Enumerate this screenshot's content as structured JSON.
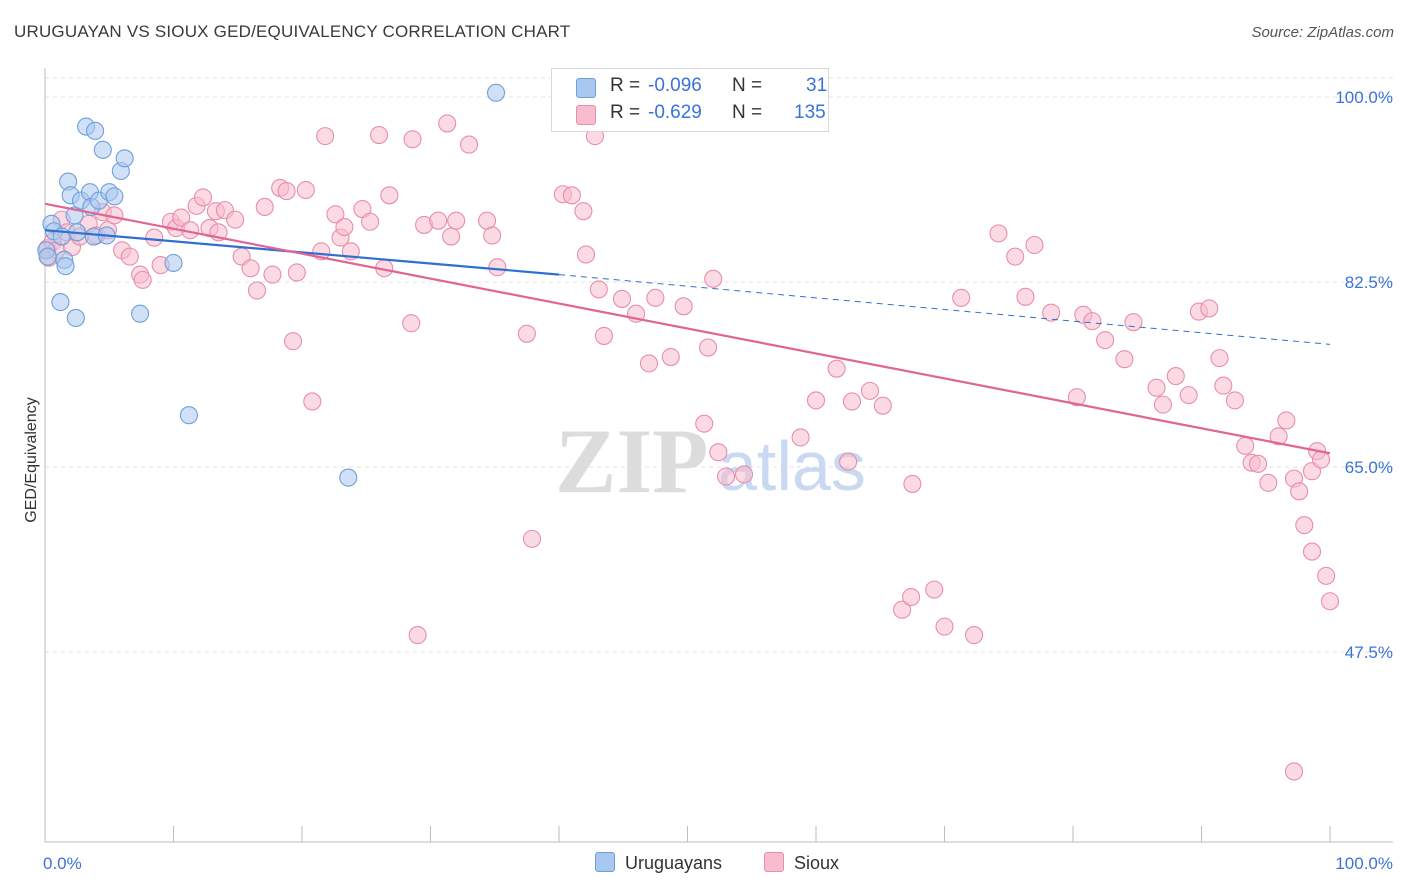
{
  "header": {
    "title": "URUGUAYAN VS SIOUX GED/EQUIVALENCY CORRELATION CHART",
    "source": "Source: ZipAtlas.com"
  },
  "watermark": {
    "zip": "ZIP",
    "atlas": "atlas"
  },
  "legend": {
    "rows": [
      {
        "r_label": "R =",
        "r_value": "-0.096",
        "n_label": "N =",
        "n_value": "31",
        "color": "#a9c8f0",
        "border": "#6f9fd8"
      },
      {
        "r_label": "R =",
        "r_value": "-0.629",
        "n_label": "N =",
        "n_value": "135",
        "color": "#f7bccd",
        "border": "#e88ea9"
      }
    ]
  },
  "bottom_legend": {
    "items": [
      {
        "label": "Uruguayans",
        "color": "#a9c8f0",
        "border": "#6f9fd8"
      },
      {
        "label": "Sioux",
        "color": "#f7bccd",
        "border": "#e88ea9"
      }
    ]
  },
  "chart_data": {
    "type": "scatter",
    "title": "URUGUAYAN VS SIOUX GED/EQUIVALENCY CORRELATION CHART",
    "ylabel": "GED/Equivalency",
    "xlabel": "",
    "xlim": [
      0,
      100
    ],
    "ylim": [
      34,
      105
    ],
    "x_tick_labels": [
      "0.0%",
      "100.0%"
    ],
    "y_ticks": [
      {
        "value": 100.0,
        "label": "100.0%"
      },
      {
        "value": 82.5,
        "label": "82.5%"
      },
      {
        "value": 65.0,
        "label": "65.0%"
      },
      {
        "value": 47.5,
        "label": "47.5%"
      }
    ],
    "grid": true,
    "series": [
      {
        "name": "Uruguayans",
        "color": "#6f9fd8",
        "fill": "#a9c8f0",
        "trend": {
          "x0": 0,
          "y0": 87.4,
          "x1": 40,
          "y1": 83.2,
          "dash_to_x": 100,
          "dash_to_y": 76.6,
          "color": "#2f6fd1"
        },
        "points": [
          [
            0.1,
            85.5
          ],
          [
            0.2,
            84.9
          ],
          [
            0.5,
            88.0
          ],
          [
            0.7,
            87.3
          ],
          [
            1.3,
            86.8
          ],
          [
            1.5,
            84.6
          ],
          [
            1.6,
            84.0
          ],
          [
            1.8,
            92.0
          ],
          [
            2.0,
            90.7
          ],
          [
            2.3,
            88.8
          ],
          [
            2.5,
            87.2
          ],
          [
            2.8,
            90.2
          ],
          [
            3.2,
            97.2
          ],
          [
            3.5,
            91.0
          ],
          [
            3.6,
            89.6
          ],
          [
            3.8,
            86.8
          ],
          [
            3.9,
            96.8
          ],
          [
            4.2,
            90.2
          ],
          [
            4.5,
            95.0
          ],
          [
            4.8,
            86.9
          ],
          [
            5.0,
            91.0
          ],
          [
            5.4,
            90.6
          ],
          [
            5.9,
            93.0
          ],
          [
            6.2,
            94.2
          ],
          [
            1.2,
            80.6
          ],
          [
            2.4,
            79.1
          ],
          [
            7.4,
            79.5
          ],
          [
            10.0,
            84.3
          ],
          [
            11.2,
            69.9
          ],
          [
            23.6,
            64.0
          ],
          [
            35.1,
            100.4
          ]
        ]
      },
      {
        "name": "Sioux",
        "color": "#e88ea9",
        "fill": "#f7bccd",
        "trend": {
          "x0": 0,
          "y0": 89.9,
          "x1": 100,
          "y1": 66.3,
          "color": "#e06592"
        },
        "points": [
          [
            0.2,
            85.7
          ],
          [
            0.3,
            84.8
          ],
          [
            0.6,
            86.3
          ],
          [
            0.9,
            85.5
          ],
          [
            1.3,
            88.4
          ],
          [
            1.7,
            87.2
          ],
          [
            2.1,
            85.8
          ],
          [
            2.7,
            86.8
          ],
          [
            3.4,
            88.0
          ],
          [
            4.0,
            86.9
          ],
          [
            4.5,
            89.1
          ],
          [
            4.9,
            87.4
          ],
          [
            5.4,
            88.8
          ],
          [
            6.0,
            85.5
          ],
          [
            6.6,
            84.9
          ],
          [
            7.4,
            83.2
          ],
          [
            7.6,
            82.7
          ],
          [
            8.5,
            86.7
          ],
          [
            9.0,
            84.1
          ],
          [
            9.8,
            88.2
          ],
          [
            10.2,
            87.6
          ],
          [
            10.6,
            88.6
          ],
          [
            11.3,
            87.4
          ],
          [
            11.8,
            89.7
          ],
          [
            12.3,
            90.5
          ],
          [
            12.8,
            87.6
          ],
          [
            13.3,
            89.2
          ],
          [
            13.5,
            87.2
          ],
          [
            14.0,
            89.3
          ],
          [
            14.8,
            88.4
          ],
          [
            15.3,
            84.9
          ],
          [
            16.0,
            83.8
          ],
          [
            16.5,
            81.7
          ],
          [
            17.1,
            89.6
          ],
          [
            17.7,
            83.2
          ],
          [
            18.3,
            91.4
          ],
          [
            18.8,
            91.1
          ],
          [
            19.3,
            76.9
          ],
          [
            19.6,
            83.4
          ],
          [
            20.3,
            91.2
          ],
          [
            20.8,
            71.2
          ],
          [
            21.5,
            85.4
          ],
          [
            21.8,
            96.3
          ],
          [
            22.6,
            88.9
          ],
          [
            23.0,
            86.7
          ],
          [
            23.3,
            87.7
          ],
          [
            23.8,
            85.4
          ],
          [
            24.7,
            89.4
          ],
          [
            25.3,
            88.2
          ],
          [
            26.0,
            96.4
          ],
          [
            26.4,
            83.8
          ],
          [
            26.8,
            90.7
          ],
          [
            28.5,
            78.6
          ],
          [
            28.6,
            96.0
          ],
          [
            29.5,
            87.9
          ],
          [
            30.6,
            88.3
          ],
          [
            31.3,
            97.5
          ],
          [
            31.6,
            86.8
          ],
          [
            32.0,
            88.3
          ],
          [
            33.0,
            95.5
          ],
          [
            34.4,
            88.3
          ],
          [
            34.8,
            86.9
          ],
          [
            35.2,
            83.9
          ],
          [
            37.5,
            77.6
          ],
          [
            40.3,
            90.8
          ],
          [
            41.0,
            90.7
          ],
          [
            41.9,
            89.2
          ],
          [
            42.1,
            85.1
          ],
          [
            42.8,
            96.3
          ],
          [
            43.1,
            81.8
          ],
          [
            43.5,
            77.4
          ],
          [
            44.9,
            80.9
          ],
          [
            46.0,
            79.5
          ],
          [
            47.0,
            74.8
          ],
          [
            48.7,
            75.4
          ],
          [
            49.7,
            80.2
          ],
          [
            51.6,
            76.3
          ],
          [
            51.3,
            69.1
          ],
          [
            52.4,
            66.4
          ],
          [
            53.0,
            64.1
          ],
          [
            54.4,
            64.3
          ],
          [
            58.8,
            67.8
          ],
          [
            60.0,
            71.3
          ],
          [
            61.6,
            74.3
          ],
          [
            62.5,
            65.5
          ],
          [
            62.8,
            71.2
          ],
          [
            64.2,
            72.2
          ],
          [
            65.2,
            70.8
          ],
          [
            66.7,
            51.5
          ],
          [
            67.4,
            52.7
          ],
          [
            69.2,
            53.4
          ],
          [
            70.0,
            49.9
          ],
          [
            71.3,
            81.0
          ],
          [
            72.3,
            49.1
          ],
          [
            74.2,
            87.1
          ],
          [
            75.5,
            84.9
          ],
          [
            76.3,
            81.1
          ],
          [
            77.0,
            86.0
          ],
          [
            78.3,
            79.6
          ],
          [
            80.3,
            71.6
          ],
          [
            80.8,
            79.4
          ],
          [
            81.5,
            78.8
          ],
          [
            82.5,
            77.0
          ],
          [
            84.0,
            75.2
          ],
          [
            84.7,
            78.7
          ],
          [
            86.5,
            72.5
          ],
          [
            87.0,
            70.9
          ],
          [
            88.0,
            73.6
          ],
          [
            89.0,
            71.8
          ],
          [
            89.8,
            79.7
          ],
          [
            90.6,
            80.0
          ],
          [
            91.4,
            75.3
          ],
          [
            91.7,
            72.7
          ],
          [
            92.6,
            71.3
          ],
          [
            93.4,
            67.0
          ],
          [
            93.9,
            65.4
          ],
          [
            94.4,
            65.3
          ],
          [
            95.2,
            63.5
          ],
          [
            96.0,
            67.9
          ],
          [
            96.6,
            69.4
          ],
          [
            97.2,
            63.9
          ],
          [
            97.6,
            62.7
          ],
          [
            98.0,
            59.5
          ],
          [
            98.6,
            57.0
          ],
          [
            98.6,
            64.6
          ],
          [
            99.0,
            66.5
          ],
          [
            99.3,
            65.7
          ],
          [
            99.7,
            54.7
          ],
          [
            100.0,
            52.3
          ],
          [
            67.5,
            63.4
          ],
          [
            56.5,
            98.3
          ],
          [
            52.0,
            82.8
          ],
          [
            47.5,
            81.0
          ],
          [
            37.9,
            58.2
          ],
          [
            29.0,
            49.1
          ],
          [
            97.2,
            36.2
          ]
        ]
      }
    ]
  }
}
